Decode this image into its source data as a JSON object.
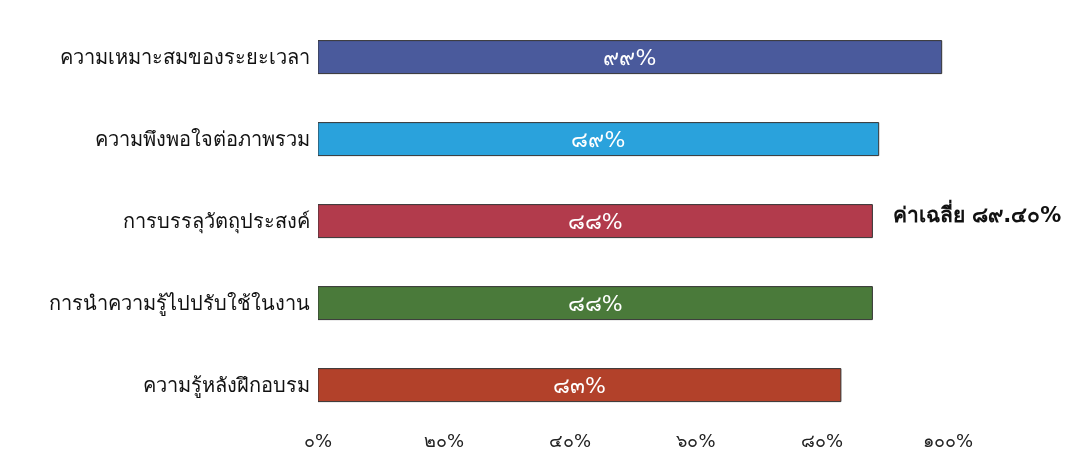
{
  "chart_data": {
    "type": "bar",
    "orientation": "horizontal",
    "categories": [
      "ความเหมาะสมของระยะเวลา",
      "ความพึงพอใจต่อภาพรวม",
      "การบรรลุวัตถุประสงค์",
      "การนำความรู้ไปปรับใช้ในงาน",
      "ความรู้หลังฝึกอบรม"
    ],
    "values": [
      99,
      89,
      88,
      88,
      83
    ],
    "value_labels": [
      "๙๙%",
      "๘๙%",
      "๘๘%",
      "๘๘%",
      "๘๓%"
    ],
    "colors": [
      "#4a5a9c",
      "#2aa2dc",
      "#b23b4c",
      "#4a7a3a",
      "#b2412a"
    ],
    "xlim": [
      0,
      100
    ],
    "xticks": [
      {
        "value": 0,
        "label": "๐%"
      },
      {
        "value": 20,
        "label": "๒๐%"
      },
      {
        "value": 40,
        "label": "๔๐%"
      },
      {
        "value": 60,
        "label": "๖๐%"
      },
      {
        "value": 80,
        "label": "๘๐%"
      },
      {
        "value": 100,
        "label": "๑๐๐%"
      }
    ],
    "annotations": [
      "ค่าเฉลี่ย ๘๙.๔๐%"
    ],
    "grid": false
  }
}
